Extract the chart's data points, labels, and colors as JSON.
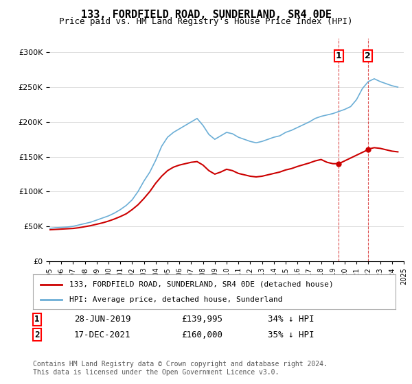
{
  "title": "133, FORDFIELD ROAD, SUNDERLAND, SR4 0DE",
  "subtitle": "Price paid vs. HM Land Registry's House Price Index (HPI)",
  "legend_line1": "133, FORDFIELD ROAD, SUNDERLAND, SR4 0DE (detached house)",
  "legend_line2": "HPI: Average price, detached house, Sunderland",
  "annotation1_label": "1",
  "annotation1_date": "28-JUN-2019",
  "annotation1_price": "£139,995",
  "annotation1_hpi": "34% ↓ HPI",
  "annotation1_year": 2019.5,
  "annotation1_value": 139995,
  "annotation2_label": "2",
  "annotation2_date": "17-DEC-2021",
  "annotation2_price": "£160,000",
  "annotation2_hpi": "35% ↓ HPI",
  "annotation2_year": 2021.96,
  "annotation2_value": 160000,
  "footer": "Contains HM Land Registry data © Crown copyright and database right 2024.\nThis data is licensed under the Open Government Licence v3.0.",
  "hpi_color": "#6baed6",
  "price_color": "#cc0000",
  "background_color": "#ffffff",
  "ylim": [
    0,
    320000
  ],
  "xlim_start": 1995,
  "xlim_end": 2025,
  "hpi_data": [
    [
      1995,
      47000
    ],
    [
      1995.5,
      48000
    ],
    [
      1996,
      48500
    ],
    [
      1996.5,
      49000
    ],
    [
      1997,
      50000
    ],
    [
      1997.5,
      52000
    ],
    [
      1998,
      54000
    ],
    [
      1998.5,
      56000
    ],
    [
      1999,
      59000
    ],
    [
      1999.5,
      62000
    ],
    [
      2000,
      65000
    ],
    [
      2000.5,
      69000
    ],
    [
      2001,
      74000
    ],
    [
      2001.5,
      80000
    ],
    [
      2002,
      88000
    ],
    [
      2002.5,
      100000
    ],
    [
      2003,
      115000
    ],
    [
      2003.5,
      128000
    ],
    [
      2004,
      145000
    ],
    [
      2004.5,
      165000
    ],
    [
      2005,
      178000
    ],
    [
      2005.5,
      185000
    ],
    [
      2006,
      190000
    ],
    [
      2006.5,
      195000
    ],
    [
      2007,
      200000
    ],
    [
      2007.5,
      205000
    ],
    [
      2008,
      195000
    ],
    [
      2008.5,
      182000
    ],
    [
      2009,
      175000
    ],
    [
      2009.5,
      180000
    ],
    [
      2010,
      185000
    ],
    [
      2010.5,
      183000
    ],
    [
      2011,
      178000
    ],
    [
      2011.5,
      175000
    ],
    [
      2012,
      172000
    ],
    [
      2012.5,
      170000
    ],
    [
      2013,
      172000
    ],
    [
      2013.5,
      175000
    ],
    [
      2014,
      178000
    ],
    [
      2014.5,
      180000
    ],
    [
      2015,
      185000
    ],
    [
      2015.5,
      188000
    ],
    [
      2016,
      192000
    ],
    [
      2016.5,
      196000
    ],
    [
      2017,
      200000
    ],
    [
      2017.5,
      205000
    ],
    [
      2018,
      208000
    ],
    [
      2018.5,
      210000
    ],
    [
      2019,
      212000
    ],
    [
      2019.5,
      215000
    ],
    [
      2020,
      218000
    ],
    [
      2020.5,
      222000
    ],
    [
      2021,
      232000
    ],
    [
      2021.5,
      248000
    ],
    [
      2022,
      258000
    ],
    [
      2022.5,
      262000
    ],
    [
      2023,
      258000
    ],
    [
      2023.5,
      255000
    ],
    [
      2024,
      252000
    ],
    [
      2024.5,
      250000
    ]
  ],
  "price_data": [
    [
      1995,
      45000
    ],
    [
      1995.5,
      45500
    ],
    [
      1996,
      46000
    ],
    [
      1996.5,
      46500
    ],
    [
      1997,
      47000
    ],
    [
      1997.5,
      48000
    ],
    [
      1998,
      49500
    ],
    [
      1998.5,
      51000
    ],
    [
      1999,
      53000
    ],
    [
      1999.5,
      55000
    ],
    [
      2000,
      57500
    ],
    [
      2000.5,
      60500
    ],
    [
      2001,
      64000
    ],
    [
      2001.5,
      68000
    ],
    [
      2002,
      74000
    ],
    [
      2002.5,
      81000
    ],
    [
      2003,
      90000
    ],
    [
      2003.5,
      100000
    ],
    [
      2004,
      112000
    ],
    [
      2004.5,
      122000
    ],
    [
      2005,
      130000
    ],
    [
      2005.5,
      135000
    ],
    [
      2006,
      138000
    ],
    [
      2006.5,
      140000
    ],
    [
      2007,
      142000
    ],
    [
      2007.5,
      143000
    ],
    [
      2008,
      138000
    ],
    [
      2008.5,
      130000
    ],
    [
      2009,
      125000
    ],
    [
      2009.5,
      128000
    ],
    [
      2010,
      132000
    ],
    [
      2010.5,
      130000
    ],
    [
      2011,
      126000
    ],
    [
      2011.5,
      124000
    ],
    [
      2012,
      122000
    ],
    [
      2012.5,
      121000
    ],
    [
      2013,
      122000
    ],
    [
      2013.5,
      124000
    ],
    [
      2014,
      126000
    ],
    [
      2014.5,
      128000
    ],
    [
      2015,
      131000
    ],
    [
      2015.5,
      133000
    ],
    [
      2016,
      136000
    ],
    [
      2016.5,
      138500
    ],
    [
      2017,
      141000
    ],
    [
      2017.5,
      144000
    ],
    [
      2018,
      146000
    ],
    [
      2018.5,
      142000
    ],
    [
      2019,
      140000
    ],
    [
      2019.5,
      139995
    ],
    [
      2021.96,
      160000
    ],
    [
      2022,
      161000
    ],
    [
      2022.5,
      163000
    ],
    [
      2023,
      162000
    ],
    [
      2023.5,
      160000
    ],
    [
      2024,
      158000
    ],
    [
      2024.5,
      157000
    ]
  ]
}
